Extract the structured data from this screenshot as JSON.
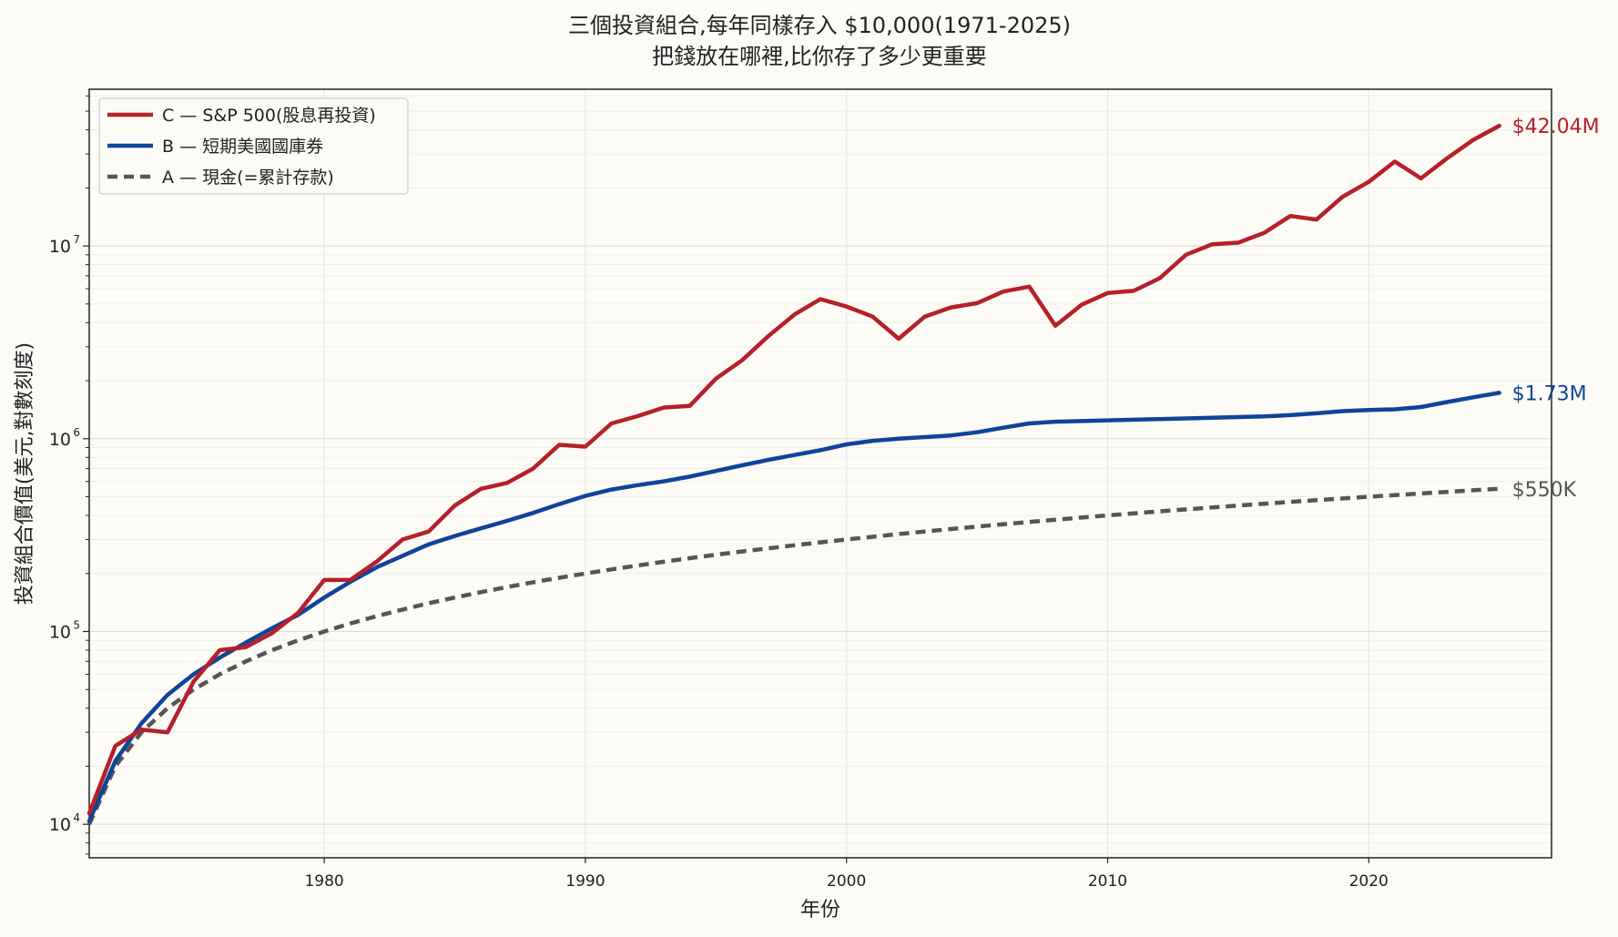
{
  "chart_data": {
    "type": "line",
    "title": "三個投資組合,每年同樣存入 $10,000(1971-2025)",
    "subtitle": "把錢放在哪裡,比你存了多少更重要",
    "xlabel": "年份",
    "ylabel": "投資組合價值(美元,對數刻度)",
    "xlim": [
      1971,
      2027
    ],
    "ylim": [
      6700,
      65000000
    ],
    "yscale": "log",
    "grid": true,
    "legend": "top-left",
    "x_ticks": [
      1980,
      1990,
      2000,
      2010,
      2020
    ],
    "y_ticks": [
      {
        "value": 10000,
        "base": "10",
        "exp": "4"
      },
      {
        "value": 100000,
        "base": "10",
        "exp": "5"
      },
      {
        "value": 1000000,
        "base": "10",
        "exp": "6"
      },
      {
        "value": 10000000,
        "base": "10",
        "exp": "7"
      }
    ],
    "x": [
      1971,
      1972,
      1973,
      1974,
      1975,
      1976,
      1977,
      1978,
      1979,
      1980,
      1981,
      1982,
      1983,
      1984,
      1985,
      1986,
      1987,
      1988,
      1989,
      1990,
      1991,
      1992,
      1993,
      1994,
      1995,
      1996,
      1997,
      1998,
      1999,
      2000,
      2001,
      2002,
      2003,
      2004,
      2005,
      2006,
      2007,
      2008,
      2009,
      2010,
      2011,
      2012,
      2013,
      2014,
      2015,
      2016,
      2017,
      2018,
      2019,
      2020,
      2021,
      2022,
      2023,
      2024,
      2025
    ],
    "series": [
      {
        "name": "C — S&P 500(股息再投資)",
        "color": "#b5202a",
        "dash": "solid",
        "end_label": "$42.04M",
        "values": [
          11400,
          25500,
          31000,
          30000,
          55000,
          80000,
          83000,
          98000,
          125000,
          185000,
          185000,
          230000,
          300000,
          330000,
          450000,
          550000,
          590000,
          700000,
          930000,
          910000,
          1200000,
          1310000,
          1450000,
          1480000,
          2050000,
          2550000,
          3400000,
          4400000,
          5300000,
          4850000,
          4300000,
          3300000,
          4300000,
          4800000,
          5050000,
          5800000,
          6150000,
          3850000,
          4950000,
          5700000,
          5850000,
          6800000,
          9000000,
          10200000,
          10400000,
          11700000,
          14300000,
          13700000,
          18000000,
          21500000,
          27400000,
          22400000,
          28500000,
          35500000,
          42040000
        ]
      },
      {
        "name": "B — 短期美國國庫券",
        "color": "#10439a",
        "dash": "solid",
        "end_label": "$1.73M",
        "values": [
          10400,
          21300,
          33400,
          46900,
          60000,
          73200,
          87700,
          104000,
          122000,
          150000,
          181000,
          215000,
          247000,
          283000,
          313000,
          343000,
          375000,
          412000,
          458000,
          505000,
          545000,
          574000,
          601000,
          636000,
          680000,
          728000,
          776000,
          823000,
          872000,
          935000,
          975000,
          1000000,
          1020000,
          1040000,
          1080000,
          1140000,
          1200000,
          1225000,
          1235000,
          1245000,
          1255000,
          1265000,
          1275000,
          1285000,
          1295000,
          1305000,
          1325000,
          1355000,
          1390000,
          1410000,
          1420000,
          1460000,
          1550000,
          1640000,
          1730000
        ]
      },
      {
        "name": "A — 現金(=累計存款)",
        "color": "#555555",
        "dash": "dashed",
        "end_label": "$550K",
        "values": [
          10000,
          20000,
          30000,
          40000,
          50000,
          60000,
          70000,
          80000,
          90000,
          100000,
          110000,
          120000,
          130000,
          140000,
          150000,
          160000,
          170000,
          180000,
          190000,
          200000,
          210000,
          220000,
          230000,
          240000,
          250000,
          260000,
          270000,
          280000,
          290000,
          300000,
          310000,
          320000,
          330000,
          340000,
          350000,
          360000,
          370000,
          380000,
          390000,
          400000,
          410000,
          420000,
          430000,
          440000,
          450000,
          460000,
          470000,
          480000,
          490000,
          500000,
          510000,
          520000,
          530000,
          540000,
          550000
        ]
      }
    ]
  }
}
